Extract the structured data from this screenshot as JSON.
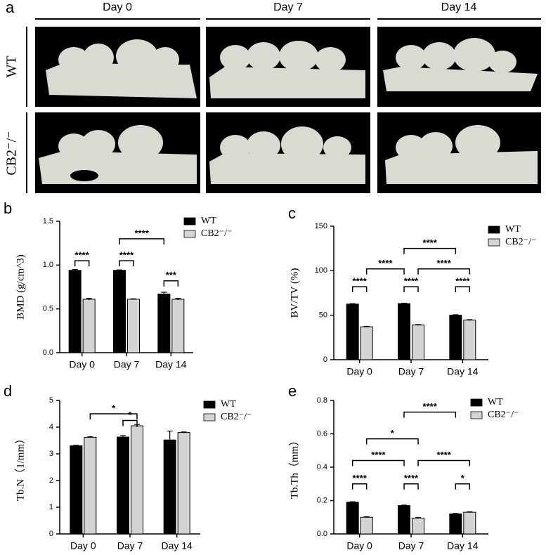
{
  "panel_a": {
    "panel": "a",
    "columns": [
      "Day 0",
      "Day 7",
      "Day 14"
    ],
    "rows": [
      "WT",
      "CB2⁻/⁻"
    ]
  },
  "chart_data": [
    {
      "type": "bar",
      "panel": "b",
      "y_label": "BMD (g/cm^3)",
      "categories": [
        "Day 0",
        "Day 7",
        "Day 14"
      ],
      "series": [
        {
          "name": "WT",
          "color": "#000000",
          "values": [
            0.94,
            0.94,
            0.67
          ],
          "errors": [
            0.01,
            0.005,
            0.02
          ]
        },
        {
          "name": "CB2⁻/⁻",
          "color": "#d4d4d4",
          "values": [
            0.61,
            0.61,
            0.61
          ],
          "errors": [
            0.01,
            0.005,
            0.01
          ]
        }
      ],
      "ylim": [
        0,
        1.5
      ],
      "yticks": [
        {
          "value": 0,
          "label": "0.0"
        },
        0.5,
        {
          "value": 1,
          "label": "1.0"
        },
        1.5
      ],
      "annotations": [
        {
          "text": "****"
        },
        {
          "text": "****"
        },
        {
          "text": "***"
        },
        {
          "text": "****"
        }
      ]
    },
    {
      "type": "bar",
      "panel": "c",
      "y_label": "BV/TV (%)",
      "categories": [
        "Day 0",
        "Day 7",
        "Day 14"
      ],
      "series": [
        {
          "name": "WT",
          "color": "#000000",
          "values": [
            62.5,
            63,
            50
          ],
          "errors": [
            0.5,
            0.5,
            0.5
          ]
        },
        {
          "name": "CB2⁻/⁻",
          "color": "#d4d4d4",
          "values": [
            37,
            39,
            44.5
          ],
          "errors": [
            0.5,
            0.5,
            0.5
          ]
        }
      ],
      "ylim": [
        0,
        150
      ],
      "yticks": [
        0,
        50,
        100,
        150
      ],
      "annotations": [
        {
          "text": "****"
        },
        {
          "text": "****"
        },
        {
          "text": "****"
        },
        {
          "text": "****"
        },
        {
          "text": "****"
        },
        {
          "text": "****"
        }
      ]
    },
    {
      "type": "bar",
      "panel": "d",
      "y_label": "Tb.N（1/mm）",
      "categories": [
        "Day 0",
        "Day 7",
        "Day 14"
      ],
      "series": [
        {
          "name": "WT",
          "color": "#000000",
          "values": [
            3.3,
            3.63,
            3.52
          ],
          "errors": [
            0.02,
            0.05,
            0.33
          ]
        },
        {
          "name": "CB2⁻/⁻",
          "color": "#d4d4d4",
          "values": [
            3.62,
            4.05,
            3.8
          ],
          "errors": [
            0.02,
            0.05,
            0.02
          ]
        }
      ],
      "ylim": [
        0,
        5
      ],
      "yticks": [
        0,
        1,
        2,
        3,
        4,
        5
      ],
      "annotations": [
        {
          "text": "*"
        },
        {
          "text": "*"
        }
      ]
    },
    {
      "type": "bar",
      "panel": "e",
      "y_label": "Tb.Th（mm）",
      "categories": [
        "Day 0",
        "Day 7",
        "Day 14"
      ],
      "series": [
        {
          "name": "WT",
          "color": "#000000",
          "values": [
            0.19,
            0.17,
            0.12
          ],
          "errors": [
            0.003,
            0.003,
            0.003
          ]
        },
        {
          "name": "CB2⁻/⁻",
          "color": "#d4d4d4",
          "values": [
            0.1,
            0.095,
            0.13
          ],
          "errors": [
            0.003,
            0.003,
            0.003
          ]
        }
      ],
      "ylim": [
        0,
        0.8
      ],
      "yticks": [
        {
          "value": 0,
          "label": "0.0"
        },
        0.2,
        0.4,
        0.6,
        0.8
      ],
      "annotations": [
        {
          "text": "****"
        },
        {
          "text": "****"
        },
        {
          "text": "*"
        },
        {
          "text": "****"
        },
        {
          "text": "*"
        },
        {
          "text": "****"
        },
        {
          "text": "****"
        }
      ]
    }
  ]
}
